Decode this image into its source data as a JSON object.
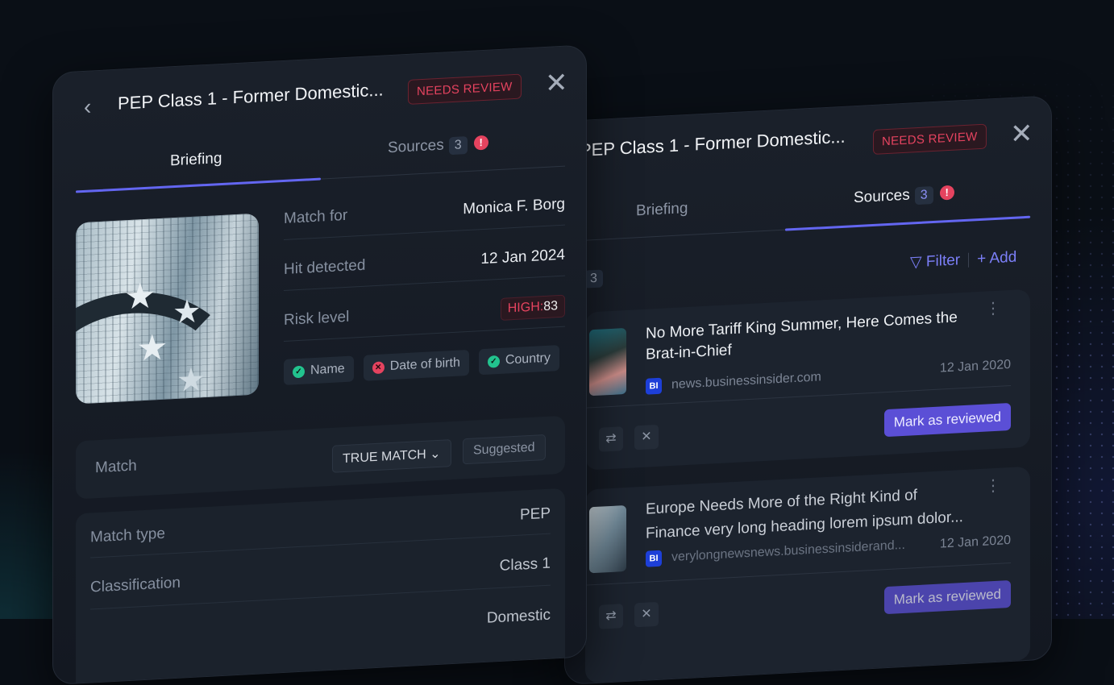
{
  "left_panel": {
    "title": "PEP Class 1 - Former Domestic...",
    "status_badge": "NEEDS REVIEW",
    "tabs": [
      {
        "label": "Briefing",
        "active": true
      },
      {
        "label": "Sources",
        "count": "3",
        "alert": "!"
      }
    ],
    "info": [
      {
        "label": "Match for",
        "value": "Monica F. Borg"
      },
      {
        "label": "Hit detected",
        "value": "12 Jan 2024"
      },
      {
        "label": "Risk level",
        "risk_label": "HIGH:",
        "risk_score": "83"
      }
    ],
    "checks": [
      {
        "label": "Name",
        "status": "pass"
      },
      {
        "label": "Date of birth",
        "status": "fail"
      },
      {
        "label": "Country",
        "status": "pass"
      }
    ],
    "match": {
      "label": "Match",
      "select_value": "TRUE MATCH",
      "suggested": "Suggested"
    },
    "details": [
      {
        "label": "Match type",
        "value": "PEP"
      },
      {
        "label": "Classification",
        "value": "Class 1"
      },
      {
        "label": "",
        "value": "Domestic"
      }
    ]
  },
  "right_panel": {
    "title": "PEP Class 1 - Former Domestic...",
    "status_badge": "NEEDS REVIEW",
    "tabs": [
      {
        "label": "Briefing"
      },
      {
        "label": "Sources",
        "count": "3",
        "alert": "!",
        "active": true
      }
    ],
    "results_count": "3",
    "filter": "Filter",
    "add": "+ Add",
    "sources": [
      {
        "title_line1": "No More Tariff King Summer, Here Comes the",
        "title_line2": "Brat-in-Chief",
        "publisher_icon": "BI",
        "domain": "news.businessinsider.com",
        "date": "12 Jan 2020",
        "action": "Mark as reviewed"
      },
      {
        "title_line1": "Europe Needs More of the Right Kind of",
        "title_line2": "Finance very long heading lorem ipsum dolor...",
        "publisher_icon": "BI",
        "domain": "verylongnewsnews.businessinsiderand...",
        "date": "12 Jan 2020",
        "action": "Mark as reviewed"
      }
    ]
  },
  "colors": {
    "accent": "#6366f1",
    "danger": "#e5435f",
    "success": "#22c38e",
    "button": "#5b4fd6"
  }
}
